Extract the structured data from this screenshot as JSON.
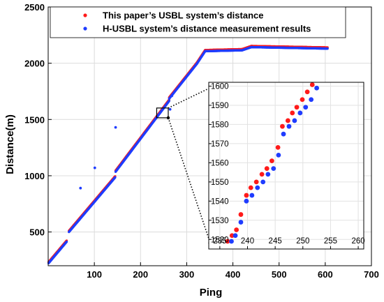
{
  "chart_data": [
    {
      "type": "scatter",
      "title": "",
      "xlabel": "Ping",
      "ylabel": "Distance(m)",
      "xlim": [
        0,
        700
      ],
      "ylim": [
        200,
        2500
      ],
      "xticks": [
        "100",
        "200",
        "300",
        "400",
        "500",
        "600",
        "700"
      ],
      "yticks": [
        "500",
        "1000",
        "1500",
        "2000",
        "2500"
      ],
      "grid": true,
      "legend_position": "top",
      "colors": {
        "red": "#ff1a1a",
        "blue": "#1f3cff"
      },
      "series": [
        {
          "name": "This paper’s USBL system’s distance",
          "color": "#ff1a1a",
          "segments": [
            {
              "x": [
                1,
                40
              ],
              "y": [
                228,
                418
              ]
            },
            {
              "x": [
                45,
                145
              ],
              "y": [
                505,
                990
              ]
            },
            {
              "x": [
                146,
                262
              ],
              "y": [
                1040,
                1670
              ]
            },
            {
              "x": [
                262,
                322
              ],
              "y": [
                1690,
                2000
              ]
            },
            {
              "x": [
                322,
                340
              ],
              "y": [
                2000,
                2112
              ]
            },
            {
              "x": [
                340,
                420
              ],
              "y": [
                2112,
                2120
              ]
            },
            {
              "x": [
                420,
                440
              ],
              "y": [
                2120,
                2148
              ]
            },
            {
              "x": [
                440,
                605
              ],
              "y": [
                2148,
                2135
              ]
            }
          ]
        },
        {
          "name": "H-USBL system’s distance measurement results",
          "color": "#1f3cff",
          "segments": [
            {
              "x": [
                1,
                40
              ],
              "y": [
                228,
                418
              ]
            },
            {
              "x": [
                45,
                145
              ],
              "y": [
                505,
                990
              ]
            },
            {
              "x": [
                146,
                262
              ],
              "y": [
                1040,
                1670
              ]
            },
            {
              "x": [
                262,
                322
              ],
              "y": [
                1690,
                2000
              ]
            },
            {
              "x": [
                322,
                340
              ],
              "y": [
                2000,
                2112
              ]
            },
            {
              "x": [
                340,
                420
              ],
              "y": [
                2112,
                2120
              ]
            },
            {
              "x": [
                420,
                440
              ],
              "y": [
                2120,
                2148
              ]
            },
            {
              "x": [
                440,
                605
              ],
              "y": [
                2148,
                2135
              ]
            }
          ],
          "outliers": [
            {
              "x": 70,
              "y": 890
            },
            {
              "x": 101,
              "y": 1070
            },
            {
              "x": 146,
              "y": 1430
            },
            {
              "x": 264,
              "y": 1590
            },
            {
              "x": 268,
              "y": 1710
            }
          ]
        }
      ],
      "zoom_box": {
        "x": [
          235,
          260
        ],
        "y": [
          1515,
          1602
        ]
      }
    },
    {
      "type": "scatter",
      "xlim": [
        233,
        261
      ],
      "ylim": [
        1515,
        1602
      ],
      "xticks": [
        "235",
        "240",
        "245",
        "250",
        "255",
        "260"
      ],
      "yticks": [
        "1520",
        "1530",
        "1540",
        "1550",
        "1560",
        "1570",
        "1580",
        "1590",
        "1600"
      ],
      "grid": true,
      "series": [
        {
          "name": "This paper’s USBL system’s distance",
          "color": "#ff1a1a",
          "x": [
            236.4,
            237.2,
            238.0,
            238.8,
            239.8,
            240.6,
            241.6,
            242.6,
            243.5,
            244.4,
            245.5,
            246.3,
            247.3,
            248.1,
            248.9,
            249.9,
            250.8,
            251.7,
            252.7
          ],
          "y": [
            1519,
            1522,
            1525,
            1533,
            1543,
            1547,
            1550,
            1554,
            1557,
            1561,
            1568,
            1579,
            1582,
            1586,
            1589,
            1593,
            1597,
            1603,
            1607
          ]
        },
        {
          "name": "H-USBL system’s distance measurement results",
          "color": "#1f3cff",
          "x": [
            237.1,
            237.8,
            238.8,
            239.8,
            240.8,
            241.8,
            242.8,
            243.7,
            244.7,
            245.6,
            246.5,
            247.5,
            248.5,
            249.5,
            250.5,
            251.5,
            252.5,
            253.3
          ],
          "y": [
            1519,
            1522,
            1529,
            1540,
            1543,
            1547,
            1550,
            1554,
            1557,
            1564,
            1575,
            1579,
            1582,
            1586,
            1589,
            1593,
            1599,
            1604
          ]
        }
      ]
    }
  ]
}
